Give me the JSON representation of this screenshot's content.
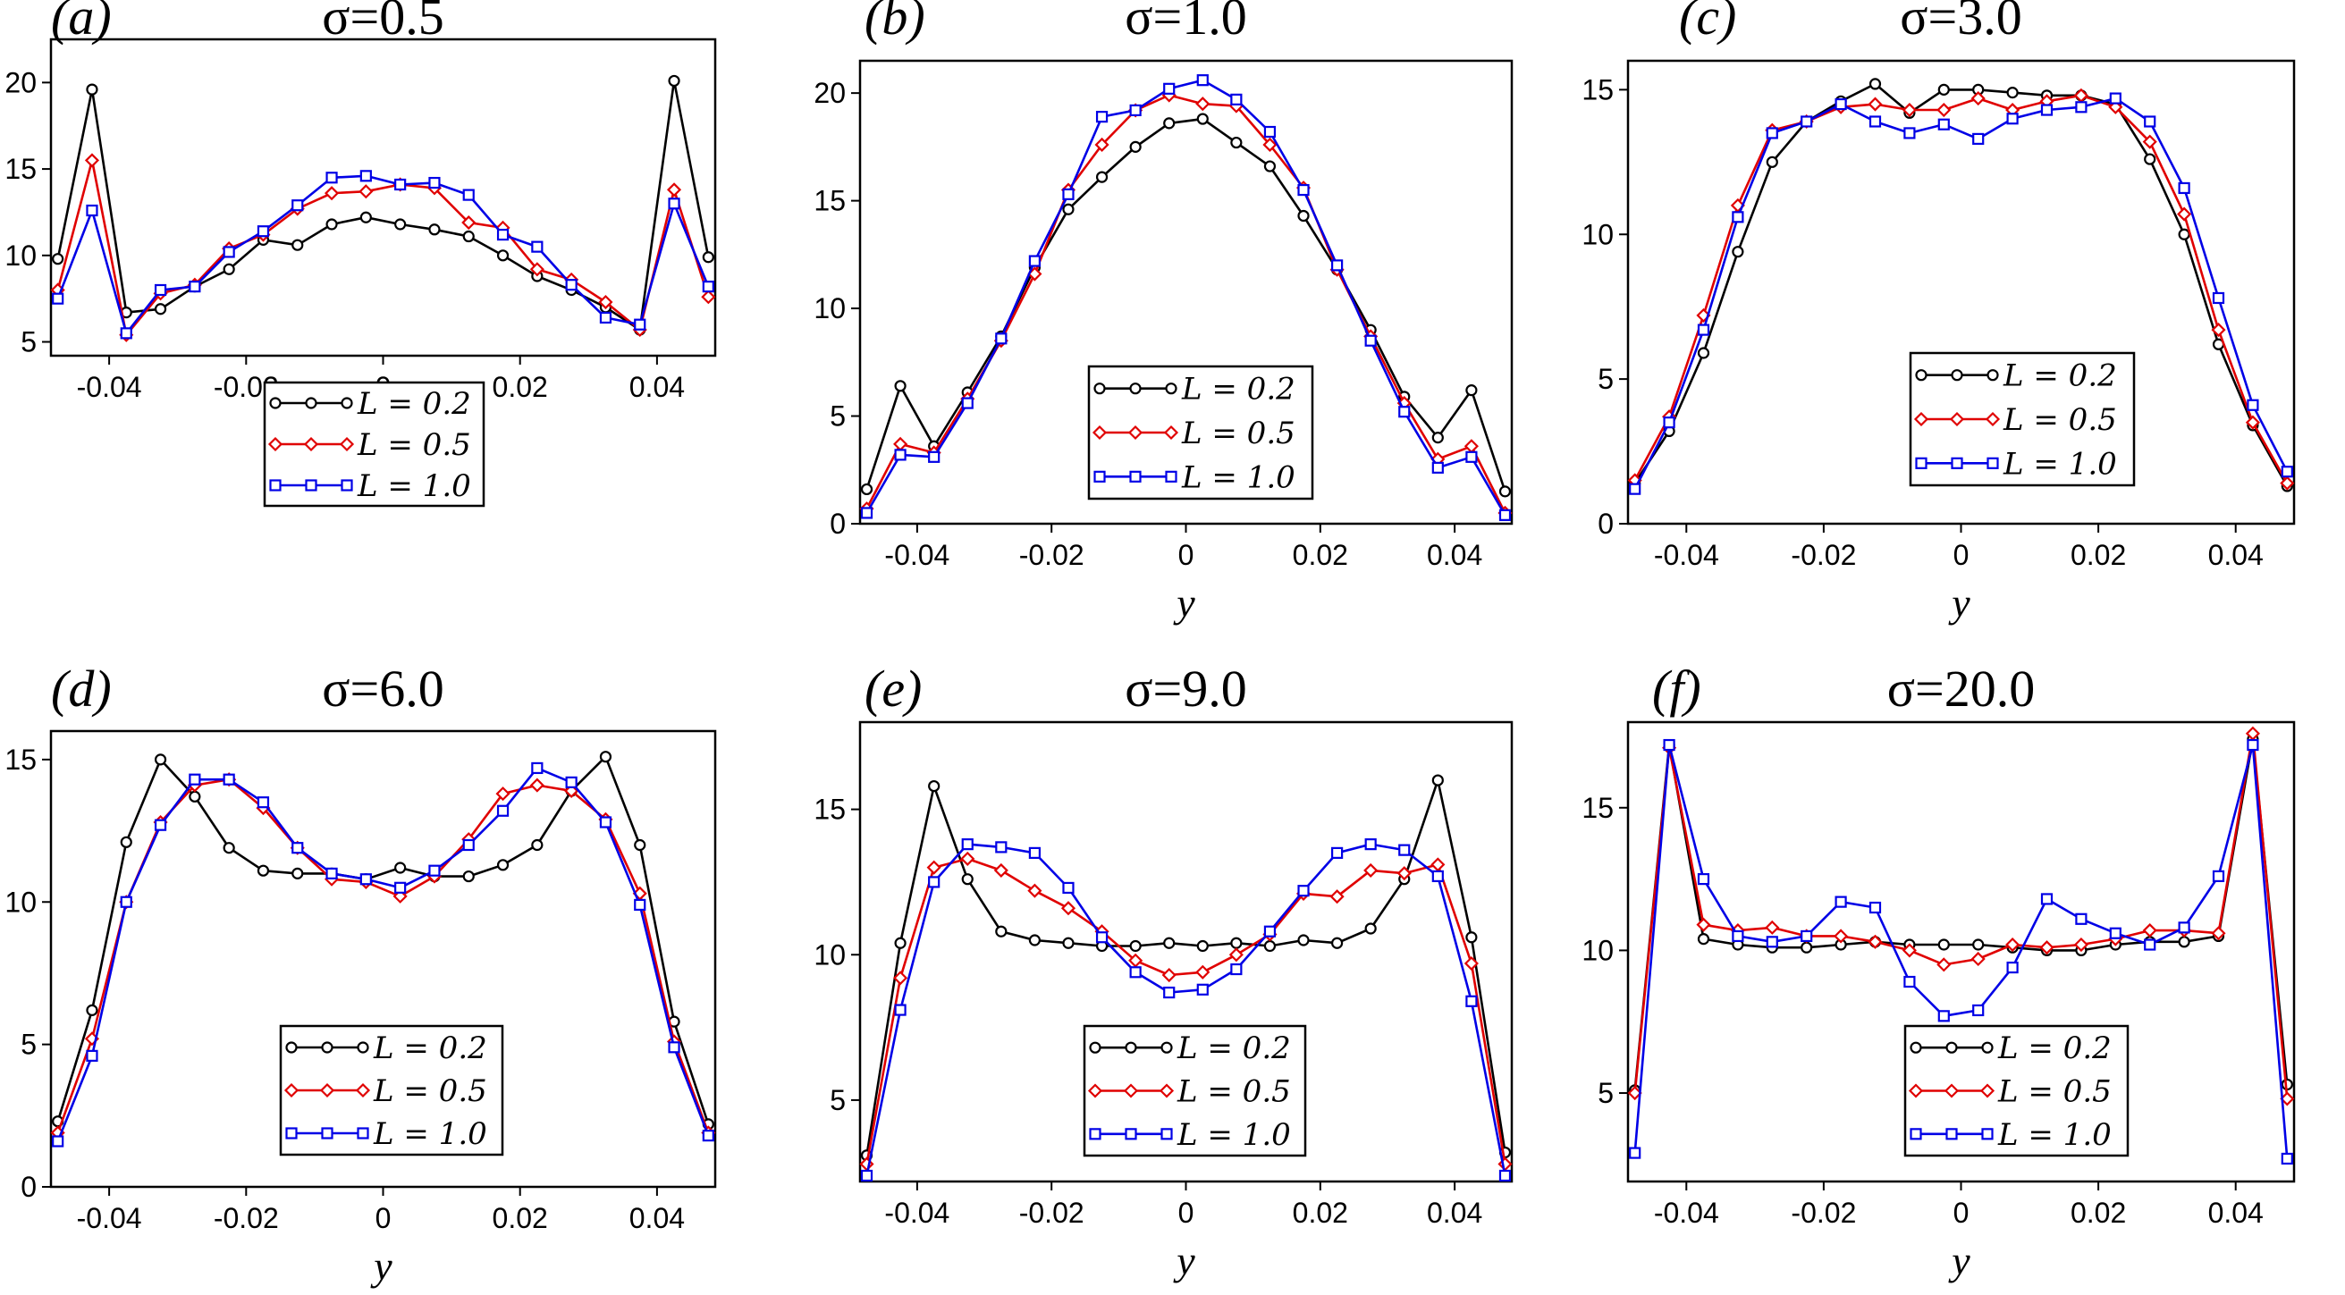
{
  "figure": {
    "xlabel": "y",
    "x_ticks": [
      -0.04,
      -0.02,
      0,
      0.02,
      0.04
    ],
    "x_tick_labels": [
      "-0.04",
      "-0.02",
      "0",
      "0.02",
      "0.04"
    ],
    "legend_labels": [
      "L = 0.2",
      "L = 0.5",
      "L = 1.0"
    ],
    "series_colors": [
      "#000000",
      "#e00000",
      "#0000e6"
    ],
    "series_markers": [
      "circle",
      "diamond",
      "square"
    ]
  },
  "chart_data": [
    {
      "type": "line",
      "panel": "(a)",
      "title": "σ=0.5",
      "xlabel": "y",
      "xlim": [
        -0.0485,
        0.0485
      ],
      "ylim": [
        4.2,
        22.5
      ],
      "yticks": [
        5,
        10,
        15,
        20
      ],
      "ytick_labels": [
        "5",
        "10",
        "15",
        "20"
      ],
      "legend_position": "lower-center",
      "x": [
        -0.0475,
        -0.0425,
        -0.0375,
        -0.0325,
        -0.0275,
        -0.0225,
        -0.0175,
        -0.0125,
        -0.0075,
        -0.0025,
        0.0025,
        0.0075,
        0.0125,
        0.0175,
        0.0225,
        0.0275,
        0.0325,
        0.0375,
        0.0425,
        0.0475
      ],
      "series": [
        {
          "name": "L = 0.2",
          "values": [
            9.8,
            19.6,
            6.7,
            6.9,
            8.2,
            9.2,
            10.9,
            10.6,
            11.8,
            12.2,
            11.8,
            11.5,
            11.1,
            10.0,
            8.8,
            8.0,
            7.0,
            5.7,
            20.1,
            9.9
          ]
        },
        {
          "name": "L = 0.5",
          "values": [
            8.0,
            15.5,
            5.4,
            7.8,
            8.3,
            10.4,
            11.2,
            12.7,
            13.6,
            13.7,
            14.1,
            13.9,
            11.9,
            11.6,
            9.2,
            8.6,
            7.3,
            5.7,
            13.8,
            7.6
          ]
        },
        {
          "name": "L = 1.0",
          "values": [
            7.5,
            12.6,
            5.5,
            8.0,
            8.2,
            10.2,
            11.4,
            12.9,
            14.5,
            14.6,
            14.1,
            14.2,
            13.5,
            11.2,
            10.5,
            8.3,
            6.4,
            6.0,
            13.0,
            8.2
          ]
        }
      ]
    },
    {
      "type": "line",
      "panel": "(b)",
      "title": "σ=1.0",
      "xlabel": "y",
      "xlim": [
        -0.0485,
        0.0485
      ],
      "ylim": [
        0,
        21.5
      ],
      "yticks": [
        0,
        5,
        10,
        15,
        20
      ],
      "ytick_labels": [
        "0",
        "5",
        "10",
        "15",
        "20"
      ],
      "legend_position": "lower-center",
      "x": [
        -0.0475,
        -0.0425,
        -0.0375,
        -0.0325,
        -0.0275,
        -0.0225,
        -0.0175,
        -0.0125,
        -0.0075,
        -0.0025,
        0.0025,
        0.0075,
        0.0125,
        0.0175,
        0.0225,
        0.0275,
        0.0325,
        0.0375,
        0.0425,
        0.0475
      ],
      "series": [
        {
          "name": "L = 0.2",
          "values": [
            1.6,
            6.4,
            3.6,
            6.1,
            8.7,
            11.9,
            14.6,
            16.1,
            17.5,
            18.6,
            18.8,
            17.7,
            16.6,
            14.3,
            11.8,
            9.0,
            5.9,
            4.0,
            6.2,
            1.5
          ]
        },
        {
          "name": "L = 0.5",
          "values": [
            0.7,
            3.7,
            3.3,
            5.8,
            8.5,
            11.6,
            15.5,
            17.6,
            19.2,
            19.9,
            19.5,
            19.4,
            17.6,
            15.6,
            11.8,
            8.7,
            5.6,
            3.0,
            3.6,
            0.5
          ]
        },
        {
          "name": "L = 1.0",
          "values": [
            0.5,
            3.2,
            3.1,
            5.6,
            8.6,
            12.2,
            15.3,
            18.9,
            19.2,
            20.2,
            20.6,
            19.7,
            18.2,
            15.5,
            12.0,
            8.5,
            5.2,
            2.6,
            3.1,
            0.4
          ]
        }
      ]
    },
    {
      "type": "line",
      "panel": "(c)",
      "title": "σ=3.0",
      "xlabel": "y",
      "xlim": [
        -0.0485,
        0.0485
      ],
      "ylim": [
        0,
        16
      ],
      "yticks": [
        0,
        5,
        10,
        15
      ],
      "ytick_labels": [
        "0",
        "5",
        "10",
        "15"
      ],
      "legend_position": "lower-center",
      "x": [
        -0.0475,
        -0.0425,
        -0.0375,
        -0.0325,
        -0.0275,
        -0.0225,
        -0.0175,
        -0.0125,
        -0.0075,
        -0.0025,
        0.0025,
        0.0075,
        0.0125,
        0.0175,
        0.0225,
        0.0275,
        0.0325,
        0.0375,
        0.0425,
        0.0475
      ],
      "series": [
        {
          "name": "L = 0.2",
          "values": [
            1.4,
            3.2,
            5.9,
            9.4,
            12.5,
            13.9,
            14.6,
            15.2,
            14.2,
            15.0,
            15.0,
            14.9,
            14.8,
            14.8,
            14.5,
            12.6,
            10.0,
            6.2,
            3.4,
            1.3
          ]
        },
        {
          "name": "L = 0.5",
          "values": [
            1.5,
            3.7,
            7.2,
            11.0,
            13.6,
            13.9,
            14.4,
            14.5,
            14.3,
            14.3,
            14.7,
            14.3,
            14.6,
            14.8,
            14.4,
            13.2,
            10.7,
            6.7,
            3.5,
            1.4
          ]
        },
        {
          "name": "L = 1.0",
          "values": [
            1.2,
            3.5,
            6.7,
            10.6,
            13.5,
            13.9,
            14.5,
            13.9,
            13.5,
            13.8,
            13.3,
            14.0,
            14.3,
            14.4,
            14.7,
            13.9,
            11.6,
            7.8,
            4.1,
            1.8
          ]
        }
      ]
    },
    {
      "type": "line",
      "panel": "(d)",
      "title": "σ=6.0",
      "xlabel": "y",
      "xlim": [
        -0.0485,
        0.0485
      ],
      "ylim": [
        0,
        16
      ],
      "yticks": [
        0,
        5,
        10,
        15
      ],
      "ytick_labels": [
        "0",
        "5",
        "10",
        "15"
      ],
      "legend_position": "lower-center",
      "x": [
        -0.0475,
        -0.0425,
        -0.0375,
        -0.0325,
        -0.0275,
        -0.0225,
        -0.0175,
        -0.0125,
        -0.0075,
        -0.0025,
        0.0025,
        0.0075,
        0.0125,
        0.0175,
        0.0225,
        0.0275,
        0.0325,
        0.0375,
        0.0425,
        0.0475
      ],
      "series": [
        {
          "name": "L = 0.2",
          "values": [
            2.3,
            6.2,
            12.1,
            15.0,
            13.7,
            11.9,
            11.1,
            11.0,
            11.0,
            10.8,
            11.2,
            10.9,
            10.9,
            11.3,
            12.0,
            13.9,
            15.1,
            12.0,
            5.8,
            2.2
          ]
        },
        {
          "name": "L = 0.5",
          "values": [
            1.9,
            5.2,
            10.0,
            12.8,
            14.1,
            14.3,
            13.3,
            11.9,
            10.8,
            10.7,
            10.2,
            10.9,
            12.2,
            13.8,
            14.1,
            13.9,
            12.9,
            10.3,
            5.1,
            1.9
          ]
        },
        {
          "name": "L = 1.0",
          "values": [
            1.6,
            4.6,
            10.0,
            12.7,
            14.3,
            14.3,
            13.5,
            11.9,
            11.0,
            10.8,
            10.5,
            11.1,
            12.0,
            13.2,
            14.7,
            14.2,
            12.8,
            9.9,
            4.9,
            1.8
          ]
        }
      ]
    },
    {
      "type": "line",
      "panel": "(e)",
      "title": "σ=9.0",
      "xlabel": "y",
      "xlim": [
        -0.0485,
        0.0485
      ],
      "ylim": [
        2.2,
        18
      ],
      "yticks": [
        5,
        10,
        15
      ],
      "ytick_labels": [
        "5",
        "10",
        "15"
      ],
      "legend_position": "lower-center",
      "x": [
        -0.0475,
        -0.0425,
        -0.0375,
        -0.0325,
        -0.0275,
        -0.0225,
        -0.0175,
        -0.0125,
        -0.0075,
        -0.0025,
        0.0025,
        0.0075,
        0.0125,
        0.0175,
        0.0225,
        0.0275,
        0.0325,
        0.0375,
        0.0425,
        0.0475
      ],
      "series": [
        {
          "name": "L = 0.2",
          "values": [
            3.1,
            10.4,
            15.8,
            12.6,
            10.8,
            10.5,
            10.4,
            10.3,
            10.3,
            10.4,
            10.3,
            10.4,
            10.3,
            10.5,
            10.4,
            10.9,
            12.6,
            16.0,
            10.6,
            3.2
          ]
        },
        {
          "name": "L = 0.5",
          "values": [
            2.8,
            9.2,
            13.0,
            13.3,
            12.9,
            12.2,
            11.6,
            10.8,
            9.8,
            9.3,
            9.4,
            10.0,
            10.7,
            12.1,
            12.0,
            12.9,
            12.8,
            13.1,
            9.7,
            2.8
          ]
        },
        {
          "name": "L = 1.0",
          "values": [
            2.4,
            8.1,
            12.5,
            13.8,
            13.7,
            13.5,
            12.3,
            10.6,
            9.4,
            8.7,
            8.8,
            9.5,
            10.8,
            12.2,
            13.5,
            13.8,
            13.6,
            12.7,
            8.4,
            2.4
          ]
        }
      ]
    },
    {
      "type": "line",
      "panel": "(f)",
      "title": "σ=20.0",
      "xlabel": "y",
      "xlim": [
        -0.0485,
        0.0485
      ],
      "ylim": [
        1.9,
        18
      ],
      "yticks": [
        5,
        10,
        15
      ],
      "ytick_labels": [
        "5",
        "10",
        "15"
      ],
      "legend_position": "lower-center",
      "x": [
        -0.0475,
        -0.0425,
        -0.0375,
        -0.0325,
        -0.0275,
        -0.0225,
        -0.0175,
        -0.0125,
        -0.0075,
        -0.0025,
        0.0025,
        0.0075,
        0.0125,
        0.0175,
        0.0225,
        0.0275,
        0.0325,
        0.0375,
        0.0425,
        0.0475
      ],
      "series": [
        {
          "name": "L = 0.2",
          "values": [
            5.1,
            17.2,
            10.4,
            10.2,
            10.1,
            10.1,
            10.2,
            10.3,
            10.2,
            10.2,
            10.2,
            10.1,
            10.0,
            10.0,
            10.2,
            10.3,
            10.3,
            10.5,
            17.4,
            5.3
          ]
        },
        {
          "name": "L = 0.5",
          "values": [
            5.0,
            17.1,
            10.9,
            10.7,
            10.8,
            10.5,
            10.5,
            10.3,
            10.0,
            9.5,
            9.7,
            10.2,
            10.1,
            10.2,
            10.4,
            10.7,
            10.7,
            10.6,
            17.6,
            4.8
          ]
        },
        {
          "name": "L = 1.0",
          "values": [
            2.9,
            17.2,
            12.5,
            10.5,
            10.3,
            10.5,
            11.7,
            11.5,
            8.9,
            7.7,
            7.9,
            9.4,
            11.8,
            11.1,
            10.6,
            10.2,
            10.8,
            12.6,
            17.2,
            2.7
          ]
        }
      ]
    }
  ]
}
